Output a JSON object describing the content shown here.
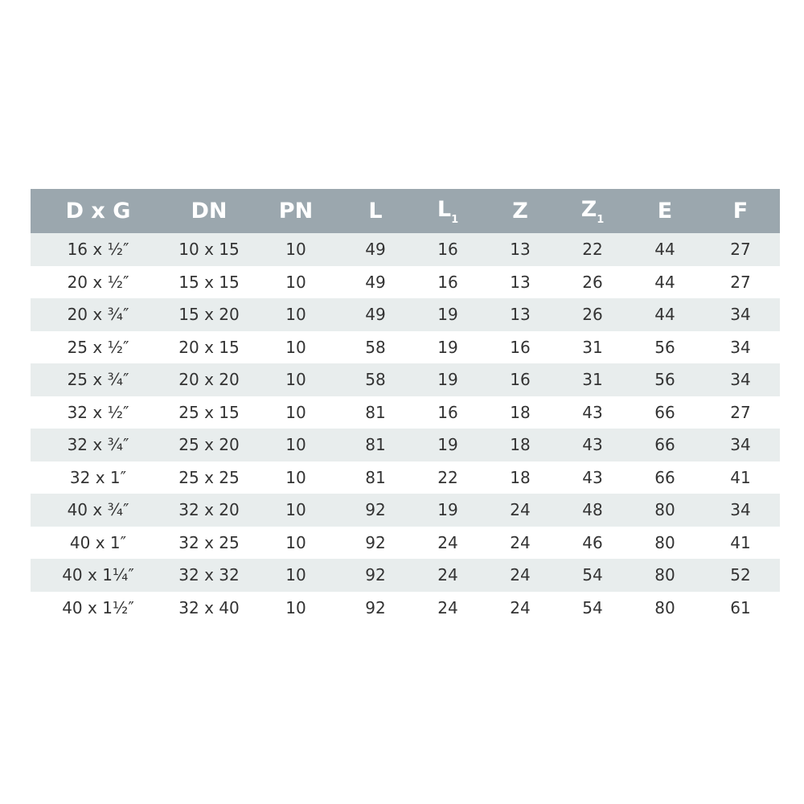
{
  "header": {
    "columns": [
      {
        "main": "D x G",
        "sub": ""
      },
      {
        "main": "DN",
        "sub": ""
      },
      {
        "main": "PN",
        "sub": ""
      },
      {
        "main": "L",
        "sub": ""
      },
      {
        "main": "L",
        "sub": "1"
      },
      {
        "main": "Z",
        "sub": ""
      },
      {
        "main": "Z",
        "sub": "1"
      },
      {
        "main": "E",
        "sub": ""
      },
      {
        "main": "F",
        "sub": ""
      }
    ]
  },
  "colors": {
    "header_bg": "#9ba7ae",
    "alt_row_bg": "#e8eded"
  },
  "rows": [
    [
      "16 x ½″",
      "10 x 15",
      "10",
      "49",
      "16",
      "13",
      "22",
      "44",
      "27"
    ],
    [
      "20 x ½″",
      "15 x 15",
      "10",
      "49",
      "16",
      "13",
      "26",
      "44",
      "27"
    ],
    [
      "20 x ¾″",
      "15 x 20",
      "10",
      "49",
      "19",
      "13",
      "26",
      "44",
      "34"
    ],
    [
      "25 x ½″",
      "20 x 15",
      "10",
      "58",
      "19",
      "16",
      "31",
      "56",
      "34"
    ],
    [
      "25 x ¾″",
      "20 x 20",
      "10",
      "58",
      "19",
      "16",
      "31",
      "56",
      "34"
    ],
    [
      "32 x ½″",
      "25 x 15",
      "10",
      "81",
      "16",
      "18",
      "43",
      "66",
      "27"
    ],
    [
      "32 x ¾″",
      "25 x 20",
      "10",
      "81",
      "19",
      "18",
      "43",
      "66",
      "34"
    ],
    [
      "32 x 1″",
      "25 x 25",
      "10",
      "81",
      "22",
      "18",
      "43",
      "66",
      "41"
    ],
    [
      "40 x ¾″",
      "32 x 20",
      "10",
      "92",
      "19",
      "24",
      "48",
      "80",
      "34"
    ],
    [
      "40 x 1″",
      "32 x 25",
      "10",
      "92",
      "24",
      "24",
      "46",
      "80",
      "41"
    ],
    [
      "40 x 1¼″",
      "32 x 32",
      "10",
      "92",
      "24",
      "24",
      "54",
      "80",
      "52"
    ],
    [
      "40 x 1½″",
      "32 x 40",
      "10",
      "92",
      "24",
      "24",
      "54",
      "80",
      "61"
    ]
  ]
}
